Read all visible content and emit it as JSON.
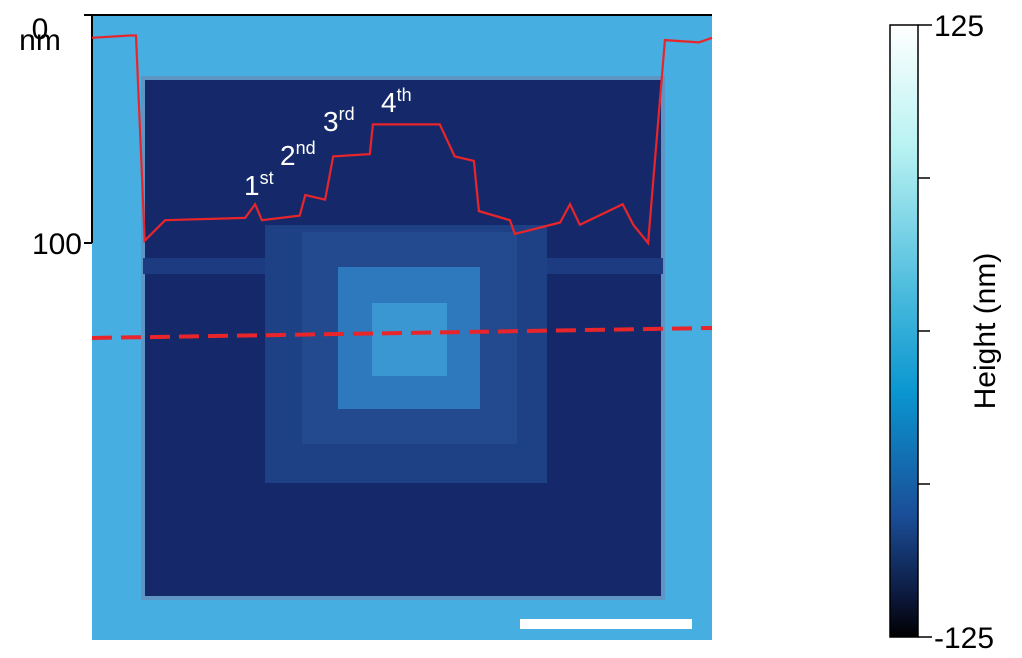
{
  "image": {
    "profile": {
      "yticks": [
        0,
        100
      ],
      "unit": "nm",
      "ylim": [
        0,
        100
      ],
      "xlim": [
        0,
        100
      ],
      "color": "#e8252a",
      "x": [
        0,
        6.1,
        7.1,
        8.5,
        11.8,
        24.7,
        26.3,
        27.4,
        33.5,
        34.4,
        37.6,
        38.9,
        44.8,
        45.3,
        56.1,
        58.5,
        61.6,
        62.4,
        67.4,
        68.2,
        75.5,
        77.1,
        78.7,
        85.6,
        87.3,
        89.7,
        92.4,
        97.9,
        100
      ],
      "depth": [
        10,
        9,
        9,
        99,
        90,
        89,
        83,
        90,
        88,
        79,
        81,
        62,
        61,
        48,
        48,
        62,
        64,
        86,
        90,
        96,
        91,
        83,
        92,
        83,
        92,
        100,
        11,
        12,
        10
      ]
    },
    "step_labels": [
      {
        "number": "1",
        "suffix": "st"
      },
      {
        "number": "2",
        "suffix": "nd"
      },
      {
        "number": "3",
        "suffix": "rd"
      },
      {
        "number": "4",
        "suffix": "th"
      }
    ]
  },
  "colorbar": {
    "title": "Height (nm)",
    "ticks": [
      125,
      -125
    ],
    "range": [
      -125,
      125
    ]
  }
}
